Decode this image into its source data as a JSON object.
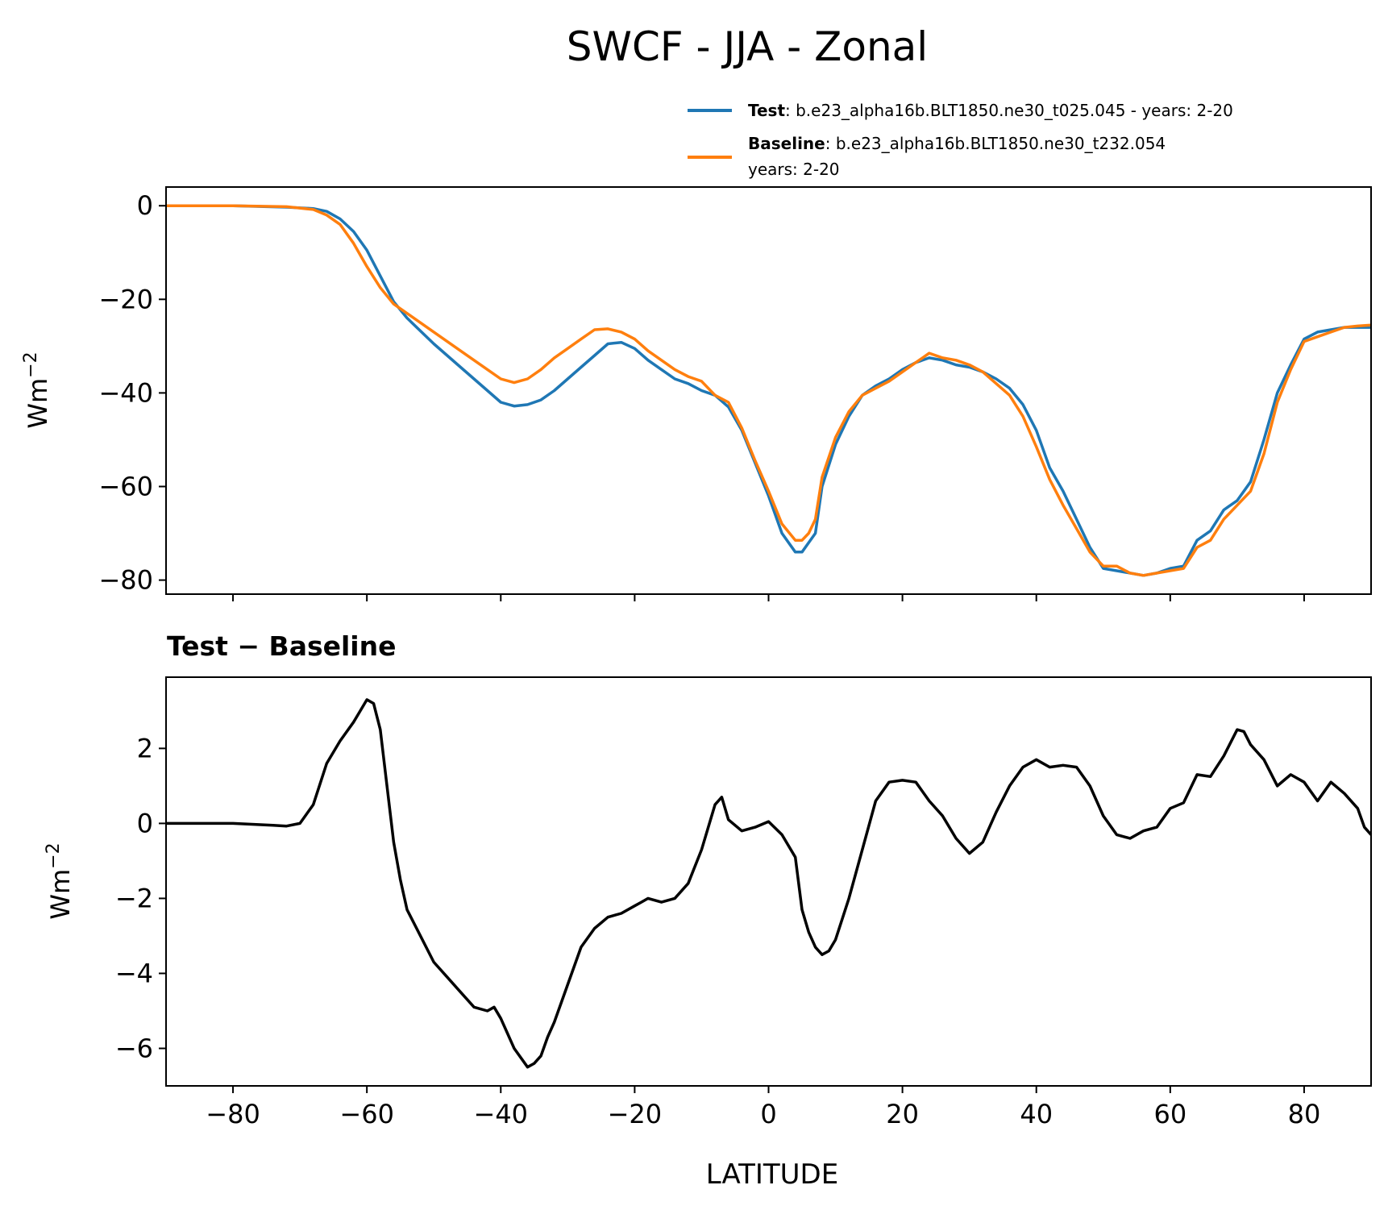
{
  "chart_data": {
    "type": "line",
    "title": "SWCF - JJA - Zonal",
    "xlabel": "LATITUDE",
    "xlim": [
      -90,
      90
    ],
    "xticks": [
      -80,
      -60,
      -40,
      -20,
      0,
      20,
      40,
      60,
      80
    ],
    "xtick_labels": [
      "−80",
      "−60",
      "−40",
      "−20",
      "0",
      "20",
      "40",
      "60",
      "80"
    ],
    "legend": {
      "placement": "upper-right, above top panel",
      "entries": [
        {
          "name_bold": "Test",
          "text": ": b.e23_alpha16b.BLT1850.ne30_t025.045 - years: 2-20",
          "color": "#1f77b4"
        },
        {
          "name_bold": "Baseline",
          "text": ": b.e23_alpha16b.BLT1850.ne30_t232.054",
          "text2": "years: 2-20",
          "color": "#ff7f0e"
        }
      ]
    },
    "panels": [
      {
        "id": "top",
        "title": "",
        "ylabel_base": "Wm",
        "ylabel_exp": "−2",
        "ylim": [
          -83,
          4
        ],
        "yticks": [
          0,
          -20,
          -40,
          -60,
          -80
        ],
        "ytick_labels": [
          "0",
          "−20",
          "−40",
          "−60",
          "−80"
        ],
        "series": [
          {
            "name": "Test",
            "color": "#1f77b4",
            "x": [
              -90,
              -80,
              -72,
              -68,
              -66,
              -64,
              -62,
              -60,
              -58,
              -56,
              -54,
              -50,
              -46,
              -42,
              -40,
              -38,
              -36,
              -34,
              -32,
              -30,
              -28,
              -26,
              -24,
              -22,
              -20,
              -18,
              -16,
              -14,
              -12,
              -10,
              -8,
              -6,
              -4,
              -2,
              0,
              2,
              4,
              5,
              6,
              7,
              8,
              10,
              12,
              14,
              16,
              18,
              20,
              22,
              24,
              26,
              28,
              30,
              32,
              34,
              36,
              38,
              40,
              42,
              44,
              46,
              48,
              50,
              52,
              54,
              56,
              58,
              60,
              62,
              64,
              66,
              68,
              70,
              72,
              74,
              76,
              78,
              80,
              82,
              84,
              86,
              88,
              90
            ],
            "values": [
              0,
              0,
              -0.3,
              -0.6,
              -1.2,
              -2.8,
              -5.5,
              -9.5,
              -15,
              -20.5,
              -24,
              -29.5,
              -34.5,
              -39.5,
              -42,
              -42.8,
              -42.5,
              -41.5,
              -39.5,
              -37,
              -34.5,
              -32,
              -29.5,
              -29.2,
              -30.5,
              -33,
              -35,
              -37,
              -38,
              -39.5,
              -40.5,
              -43,
              -48,
              -55,
              -62,
              -70,
              -74,
              -74,
              -72,
              -70,
              -60,
              -51,
              -45,
              -40.5,
              -38.5,
              -37,
              -35,
              -33.5,
              -32.5,
              -33,
              -34,
              -34.5,
              -35.5,
              -37,
              -39,
              -42.5,
              -48,
              -56,
              -61,
              -67,
              -73,
              -77.5,
              -78,
              -78.5,
              -79,
              -78.5,
              -77.5,
              -77,
              -71.5,
              -69.5,
              -65,
              -63,
              -59,
              -50,
              -40,
              -34,
              -28.5,
              -27,
              -26.5,
              -26,
              -26,
              -26
            ]
          },
          {
            "name": "Baseline",
            "color": "#ff7f0e",
            "x": [
              -90,
              -80,
              -72,
              -68,
              -66,
              -64,
              -62,
              -60,
              -58,
              -56,
              -54,
              -50,
              -46,
              -42,
              -40,
              -38,
              -36,
              -34,
              -32,
              -30,
              -28,
              -26,
              -24,
              -22,
              -20,
              -18,
              -16,
              -14,
              -12,
              -10,
              -8,
              -6,
              -4,
              -2,
              0,
              2,
              4,
              5,
              6,
              7,
              8,
              10,
              12,
              14,
              16,
              18,
              20,
              22,
              24,
              26,
              28,
              30,
              32,
              34,
              36,
              38,
              40,
              42,
              44,
              46,
              48,
              50,
              52,
              54,
              56,
              58,
              60,
              62,
              64,
              66,
              68,
              70,
              72,
              74,
              76,
              78,
              80,
              82,
              84,
              86,
              88,
              90
            ],
            "values": [
              0,
              0,
              -0.2,
              -0.8,
              -2,
              -4,
              -8,
              -13,
              -17.5,
              -21,
              -23,
              -27,
              -31,
              -35,
              -37,
              -37.8,
              -37,
              -35,
              -32.5,
              -30.5,
              -28.5,
              -26.5,
              -26.3,
              -27,
              -28.5,
              -31,
              -33,
              -35,
              -36.5,
              -37.5,
              -40.5,
              -42,
              -47.5,
              -54.5,
              -61,
              -68,
              -71.5,
              -71.5,
              -70,
              -67,
              -58,
              -49.5,
              -44,
              -40.5,
              -39,
              -37.5,
              -35.5,
              -33.5,
              -31.5,
              -32.5,
              -33,
              -34,
              -35.5,
              -38,
              -40.5,
              -45,
              -51.5,
              -58.5,
              -64,
              -69,
              -74,
              -77,
              -77,
              -78.5,
              -79,
              -78.5,
              -78,
              -77.5,
              -73,
              -71.5,
              -67,
              -64,
              -61,
              -53,
              -42,
              -35,
              -29,
              -28,
              -27,
              -26,
              -25.7,
              -25.5
            ]
          }
        ]
      },
      {
        "id": "bottom",
        "title": "Test − Baseline",
        "ylabel_base": "Wm",
        "ylabel_exp": "−2",
        "ylim": [
          -7,
          3.9
        ],
        "yticks": [
          2,
          0,
          -2,
          -4,
          -6
        ],
        "ytick_labels": [
          "2",
          "0",
          "−2",
          "−4",
          "−6"
        ],
        "series": [
          {
            "name": "Test − Baseline",
            "color": "#000000",
            "x": [
              -90,
              -80,
              -74,
              -72,
              -70,
              -68,
              -66,
              -64,
              -62,
              -61,
              -60,
              -59,
              -58,
              -57,
              -56,
              -55,
              -54,
              -52,
              -50,
              -48,
              -46,
              -44,
              -42,
              -41,
              -40,
              -39,
              -38,
              -36,
              -35,
              -34,
              -33,
              -32,
              -30,
              -28,
              -26,
              -24,
              -22,
              -20,
              -19,
              -18,
              -16,
              -14,
              -12,
              -10,
              -8,
              -7,
              -6,
              -4,
              -2,
              0,
              2,
              4,
              5,
              6,
              7,
              8,
              9,
              10,
              12,
              14,
              16,
              18,
              20,
              22,
              24,
              26,
              28,
              30,
              32,
              34,
              36,
              38,
              40,
              42,
              44,
              46,
              48,
              50,
              52,
              54,
              56,
              58,
              60,
              62,
              64,
              66,
              68,
              70,
              71,
              72,
              74,
              76,
              78,
              80,
              82,
              84,
              86,
              88,
              89,
              90
            ],
            "values": [
              0,
              0,
              -0.05,
              -0.07,
              0,
              0.5,
              1.6,
              2.2,
              2.7,
              3.0,
              3.3,
              3.2,
              2.5,
              1.0,
              -0.5,
              -1.5,
              -2.3,
              -3.0,
              -3.7,
              -4.1,
              -4.5,
              -4.9,
              -5.0,
              -4.9,
              -5.2,
              -5.6,
              -6.0,
              -6.5,
              -6.4,
              -6.2,
              -5.7,
              -5.3,
              -4.3,
              -3.3,
              -2.8,
              -2.5,
              -2.4,
              -2.2,
              -2.1,
              -2.0,
              -2.1,
              -2.0,
              -1.6,
              -0.7,
              0.5,
              0.7,
              0.1,
              -0.2,
              -0.1,
              0.05,
              -0.3,
              -0.9,
              -2.3,
              -2.9,
              -3.3,
              -3.5,
              -3.4,
              -3.1,
              -2.0,
              -0.7,
              0.6,
              1.1,
              1.15,
              1.1,
              0.6,
              0.2,
              -0.4,
              -0.8,
              -0.5,
              0.3,
              1.0,
              1.5,
              1.7,
              1.5,
              1.55,
              1.5,
              1.0,
              0.2,
              -0.3,
              -0.4,
              -0.2,
              -0.1,
              0.4,
              0.55,
              1.3,
              1.25,
              1.8,
              2.5,
              2.45,
              2.1,
              1.7,
              1.0,
              1.3,
              1.1,
              0.6,
              1.1,
              0.8,
              0.4,
              -0.1,
              -0.3
            ]
          }
        ]
      }
    ]
  }
}
